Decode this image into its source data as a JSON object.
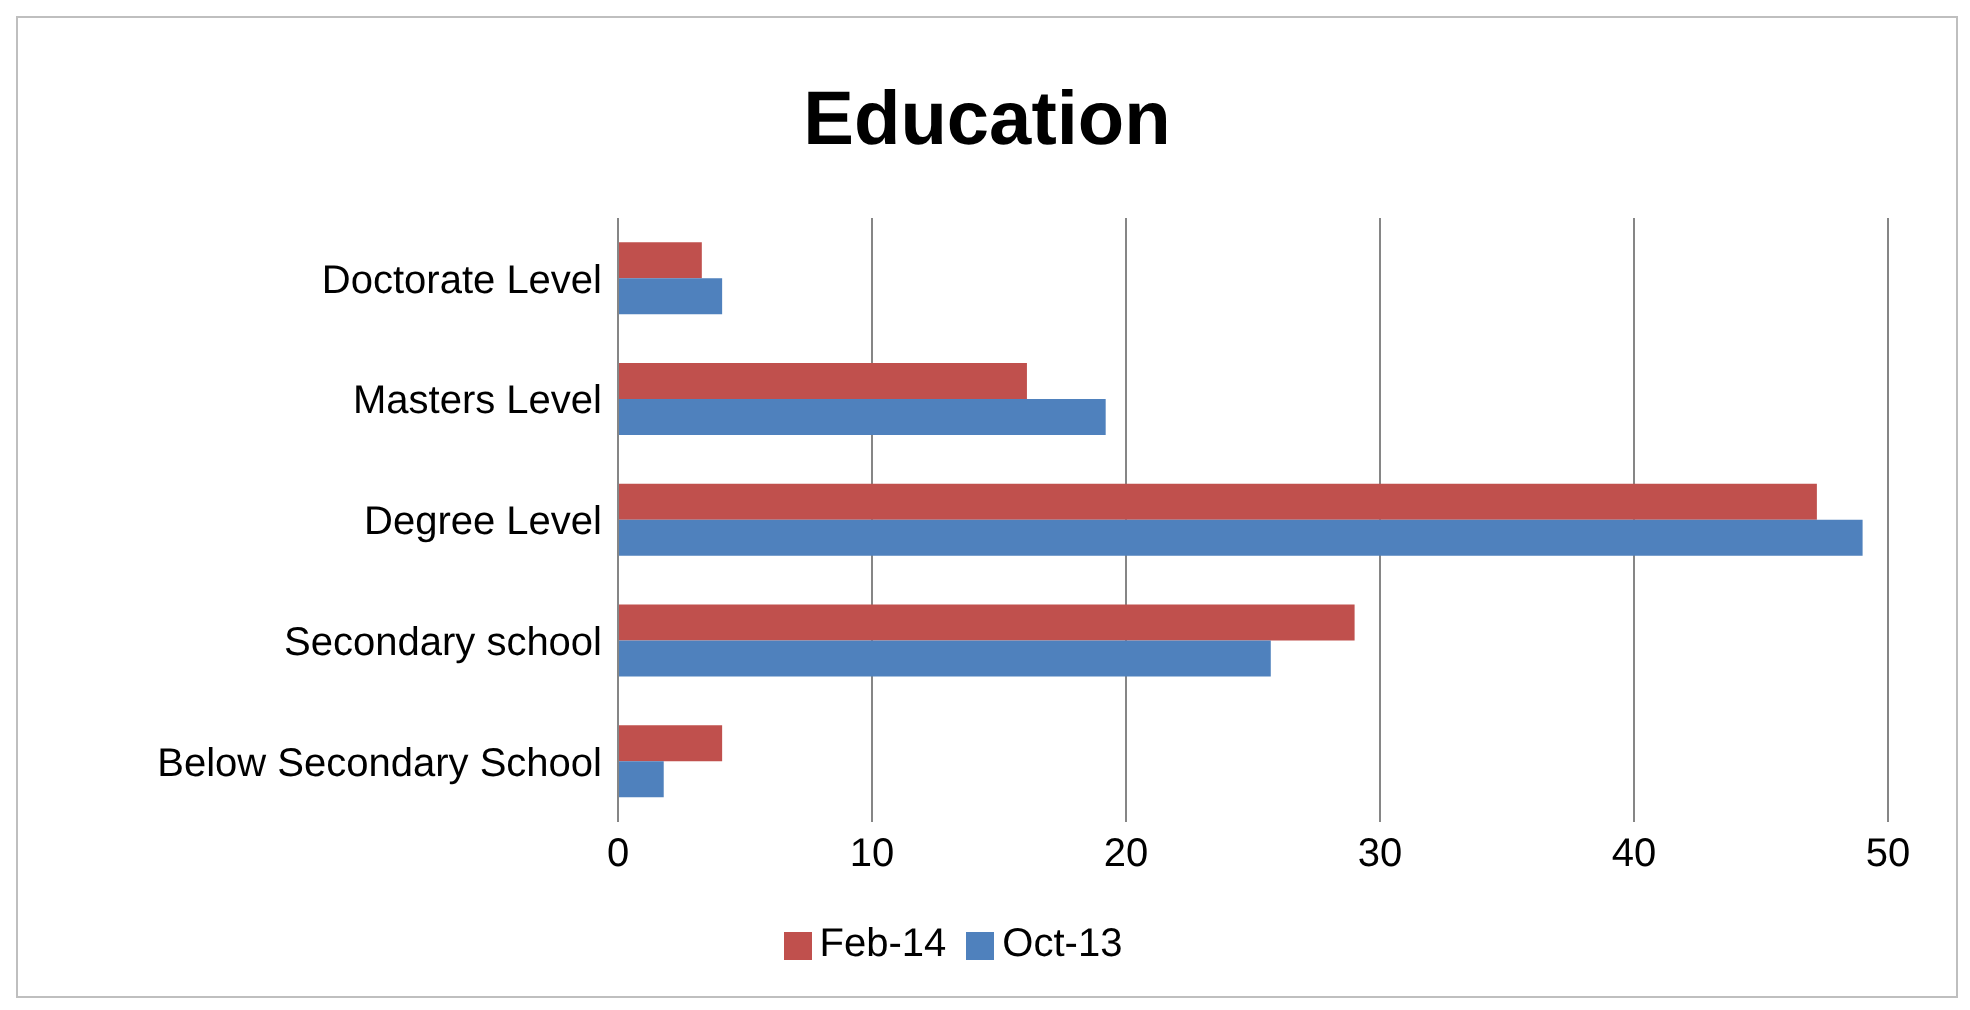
{
  "chart_data": {
    "type": "bar",
    "orientation": "horizontal",
    "title": "Education",
    "categories": [
      "Doctorate Level",
      "Masters Level",
      "Degree Level",
      "Secondary school",
      "Below Secondary School"
    ],
    "series": [
      {
        "name": "Feb-14",
        "color": "#c0504d",
        "values": [
          3.3,
          16.1,
          47.2,
          29.0,
          4.1
        ]
      },
      {
        "name": "Oct-13",
        "color": "#4f81bd",
        "values": [
          4.1,
          19.2,
          49.0,
          25.7,
          1.8
        ]
      }
    ],
    "xlim": [
      0,
      50
    ],
    "xticks": [
      0,
      10,
      20,
      30,
      40,
      50
    ],
    "grid": "x",
    "legend": "bottom"
  }
}
